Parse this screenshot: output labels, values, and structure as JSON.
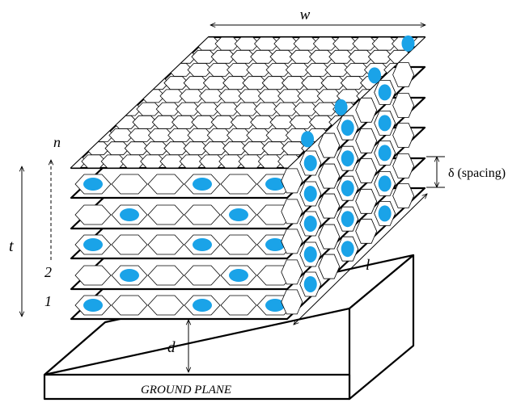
{
  "labels": {
    "width": "w",
    "layer_count": "n",
    "thickness": "t",
    "layer_2": "2",
    "layer_1": "1",
    "length": "l",
    "height_above_ground": "d",
    "spacing": "δ (spacing)",
    "ground_plane": "GROUND PLANE"
  },
  "colors": {
    "dot_fill": "#1aa3e8",
    "line": "#000000",
    "background": "#ffffff"
  }
}
